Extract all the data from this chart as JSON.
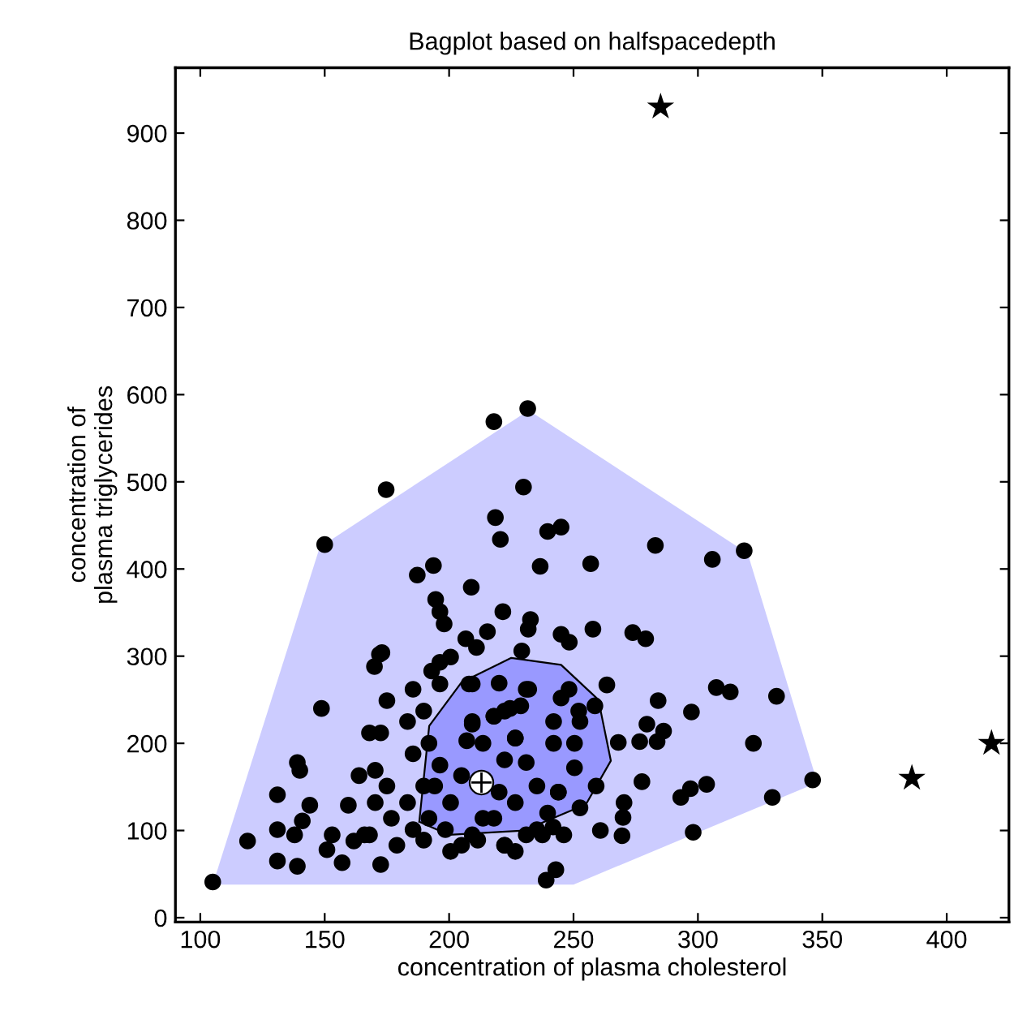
{
  "chart_data": {
    "type": "scatter",
    "title": "Bagplot based on halfspacedepth",
    "xlabel": "concentration of plasma cholesterol",
    "ylabel": "concentration of\nplasma triglycerides",
    "xlim": [
      90,
      425
    ],
    "ylim": [
      -5,
      975
    ],
    "xticks": [
      100,
      150,
      200,
      250,
      300,
      350,
      400
    ],
    "yticks": [
      0,
      100,
      200,
      300,
      400,
      500,
      600,
      700,
      800,
      900
    ],
    "grid": false,
    "series": [
      {
        "type": "area",
        "color": "#ccccff",
        "x": [
          105,
          148,
          232,
          320,
          348,
          250
        ],
        "values": [
          38,
          425,
          582,
          418,
          155,
          38
        ]
      },
      {
        "type": "area",
        "color": "#9999ff",
        "x": [
          188,
          192,
          205,
          225,
          245,
          260,
          265,
          255,
          230,
          200
        ],
        "values": [
          110,
          220,
          270,
          298,
          290,
          250,
          180,
          130,
          100,
          95
        ]
      },
      {
        "color": "#000000",
        "marker": "circle",
        "x": [
          231.6,
          218,
          174.7,
          150,
          229.9,
          218.6,
          220.6,
          239.6,
          245,
          193.7,
          187.2,
          236.6,
          208.9,
          194.6,
          196.3,
          198,
          221.6,
          232.7,
          231.8,
          206.7,
          215.4,
          211,
          245,
          248.3,
          173,
          229.2,
          282.9,
          305.8,
          318.6,
          256.9,
          257.8,
          273.8,
          279,
          284,
          297.4,
          307.4,
          313,
          331.6,
          322.3,
          279.5,
          286.2,
          276.6,
          283.6,
          268,
          346.1,
          329.9,
          303.5,
          297,
          293.1,
          298.1,
          277.5,
          270.3,
          269.9,
          269.5,
          260.8,
          242.9,
          239,
          263.4,
          258.6,
          252.1,
          252.6,
          250.4,
          242,
          242,
          245,
          248.2,
          232,
          228.8,
          222.3,
          218,
          209.3,
          207.1,
          226.6,
          220.1,
          209.3,
          231,
          250.4,
          259.1,
          252.6,
          241.8,
          246.1,
          237.5,
          231,
          222.3,
          211.5,
          205,
          220.1,
          243.9,
          235.3,
          226.6,
          213.6,
          105,
          119,
          131,
          139,
          131,
          131,
          139,
          140,
          144,
          141,
          137.9,
          148.7,
          150.9,
          157,
          172.5,
          172,
          170,
          175,
          168,
          172.5,
          159.5,
          161.7,
          163.8,
          170.3,
          175,
          170.3,
          168,
          176.8,
          179,
          185.5,
          183.3,
          189.8,
          185.5,
          183.3,
          189.8,
          185.5,
          193,
          196.3,
          200.6,
          196.3,
          208,
          191.9,
          196.3,
          194.2,
          200.6,
          205,
          213.6,
          209.3,
          218,
          224.5,
          231,
          226.6,
          222.3,
          191.9,
          198.5,
          189.8,
          200.6,
          209.3,
          218,
          222.3,
          226.6,
          235.3,
          239.6,
          243.9,
          166,
          153
        ],
        "values": [
          584,
          569,
          491,
          428,
          494,
          459,
          434,
          443,
          448,
          404,
          393,
          403,
          379,
          365,
          351,
          337,
          351,
          342,
          331,
          320,
          328,
          310,
          325,
          316,
          304,
          306,
          427,
          411,
          421,
          406,
          331,
          327,
          320,
          249,
          236,
          264,
          259,
          254,
          200,
          222,
          214,
          202,
          202,
          201,
          158,
          138,
          153,
          148,
          138,
          98,
          156,
          132,
          115,
          94,
          100,
          55,
          43,
          267,
          243,
          237,
          225,
          200,
          225,
          200,
          252,
          262,
          262,
          243,
          237,
          231,
          222,
          203,
          206,
          269,
          268,
          178,
          172,
          151,
          126,
          104,
          95,
          95,
          95,
          83,
          89,
          83,
          144,
          144,
          151,
          132,
          114,
          41,
          88,
          65,
          59,
          101,
          141,
          178,
          169,
          129,
          111,
          95,
          240,
          78,
          63,
          61,
          302,
          288,
          249,
          212,
          212,
          129,
          88,
          163,
          169,
          151,
          132,
          95,
          114,
          83,
          101,
          132,
          151,
          188,
          225,
          237,
          262,
          283,
          293,
          299,
          268,
          268,
          200,
          175,
          151,
          132,
          163,
          200,
          225,
          231,
          240,
          262,
          206,
          181,
          114,
          101,
          89,
          76,
          95,
          114,
          83,
          76,
          101,
          120,
          144,
          95,
          95
        ]
      },
      {
        "color": "#000000",
        "marker": "star",
        "x": [
          285,
          386,
          418
        ],
        "values": [
          930,
          160,
          200
        ]
      },
      {
        "color": "#ffffff",
        "marker": "circle",
        "x": [
          213
        ],
        "values": [
          155
        ]
      }
    ]
  }
}
